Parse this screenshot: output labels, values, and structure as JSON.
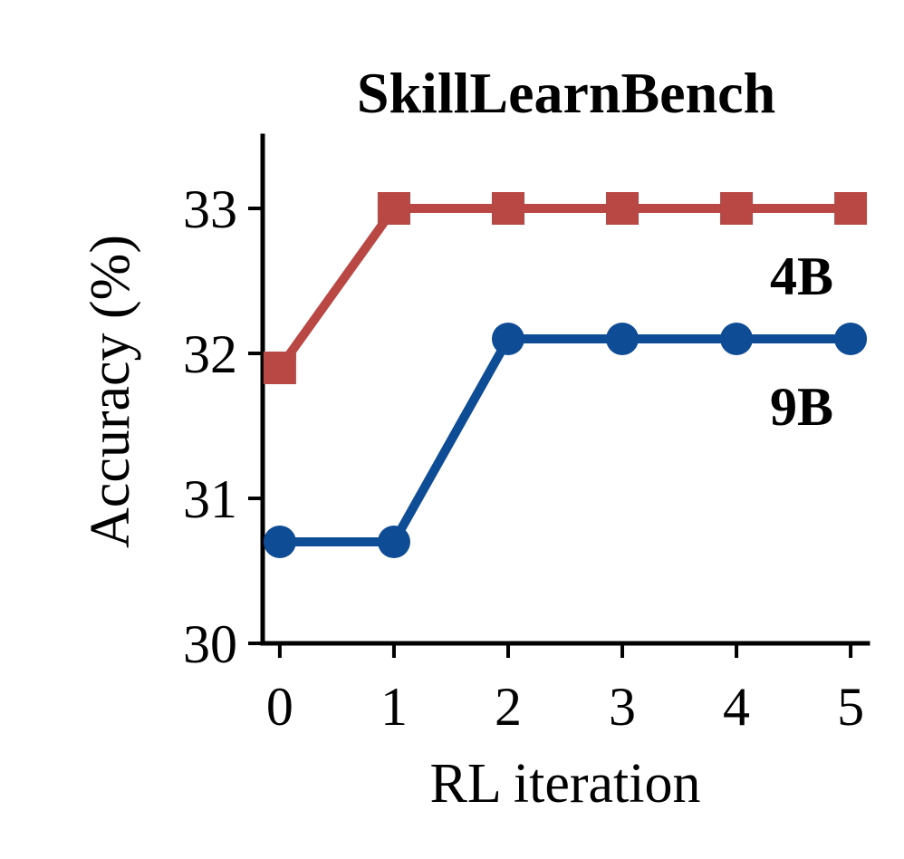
{
  "chart_data": {
    "type": "line",
    "title": "SkillLearnBench",
    "xlabel": "RL iteration",
    "ylabel": "Accuracy (%)",
    "x": [
      0,
      1,
      2,
      3,
      4,
      5
    ],
    "xticks": [
      "0",
      "1",
      "2",
      "3",
      "4",
      "5"
    ],
    "yticks": [
      "30",
      "31",
      "32",
      "33"
    ],
    "xlim": [
      -0.15,
      5.15
    ],
    "ylim": [
      30,
      33.5
    ],
    "grid": false,
    "legend": "none",
    "series": [
      {
        "name": "4B",
        "values": [
          31.9,
          33.0,
          33.0,
          33.0,
          33.0,
          33.0
        ],
        "marker": "square",
        "color": "#b94744"
      },
      {
        "name": "9B",
        "values": [
          30.7,
          30.7,
          32.1,
          32.1,
          32.1,
          32.1
        ],
        "marker": "circle",
        "color": "#0f4c96"
      }
    ]
  }
}
